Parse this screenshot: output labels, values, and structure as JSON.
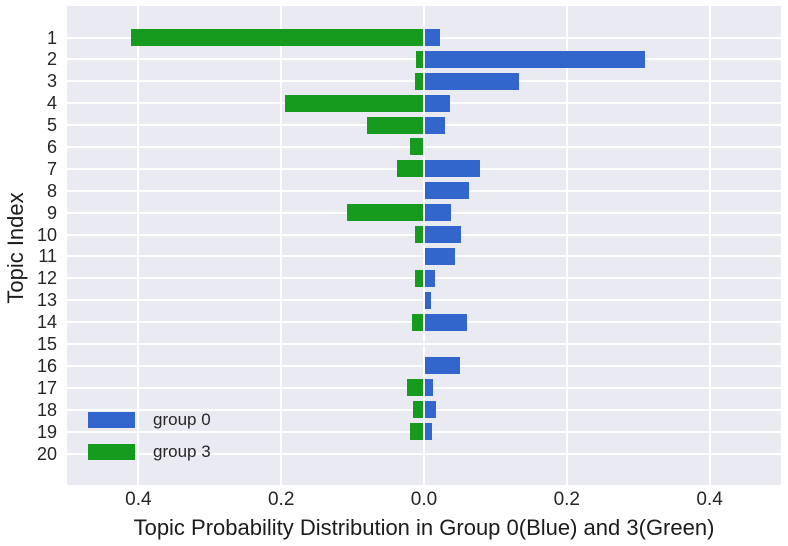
{
  "figure": {
    "background": "#ffffff",
    "plot_background": "#eaeaf2",
    "grid_color": "#ffffff",
    "text_color": "#262626"
  },
  "chart_data": {
    "type": "bar",
    "orientation": "horizontal-diverging",
    "title": "",
    "xlabel": "Topic Probability Distribution in Group 0(Blue) and 3(Green)",
    "ylabel": "Topic Index",
    "categories": [
      "1",
      "2",
      "3",
      "4",
      "5",
      "6",
      "7",
      "8",
      "9",
      "10",
      "11",
      "12",
      "13",
      "14",
      "15",
      "16",
      "17",
      "18",
      "19",
      "20"
    ],
    "series": [
      {
        "name": "group 0",
        "color": "#3366cc",
        "direction": "right",
        "values": [
          0.022,
          0.31,
          0.133,
          0.037,
          0.03,
          0.0,
          0.078,
          0.063,
          0.038,
          0.052,
          0.043,
          0.016,
          0.01,
          0.06,
          0.0,
          0.05,
          0.012,
          0.017,
          0.011,
          0.0
        ]
      },
      {
        "name": "group 3",
        "color": "#169b1e",
        "direction": "left",
        "values": [
          0.41,
          0.011,
          0.013,
          0.195,
          0.08,
          0.02,
          0.038,
          0.0,
          0.108,
          0.013,
          0.0,
          0.013,
          0.0,
          0.017,
          0.0,
          0.0,
          0.024,
          0.016,
          0.02,
          0.0
        ]
      }
    ],
    "xlim": [
      -0.5,
      0.5
    ],
    "x_ticks": [
      {
        "value": -0.4,
        "label": "0.4"
      },
      {
        "value": -0.2,
        "label": "0.2"
      },
      {
        "value": 0.0,
        "label": "0.0"
      },
      {
        "value": 0.2,
        "label": "0.2"
      },
      {
        "value": 0.4,
        "label": "0.4"
      }
    ],
    "grid": true,
    "legend_position": "lower left",
    "legend": [
      {
        "label": "group 0",
        "color": "#3366cc"
      },
      {
        "label": "group 3",
        "color": "#169b1e"
      }
    ]
  }
}
